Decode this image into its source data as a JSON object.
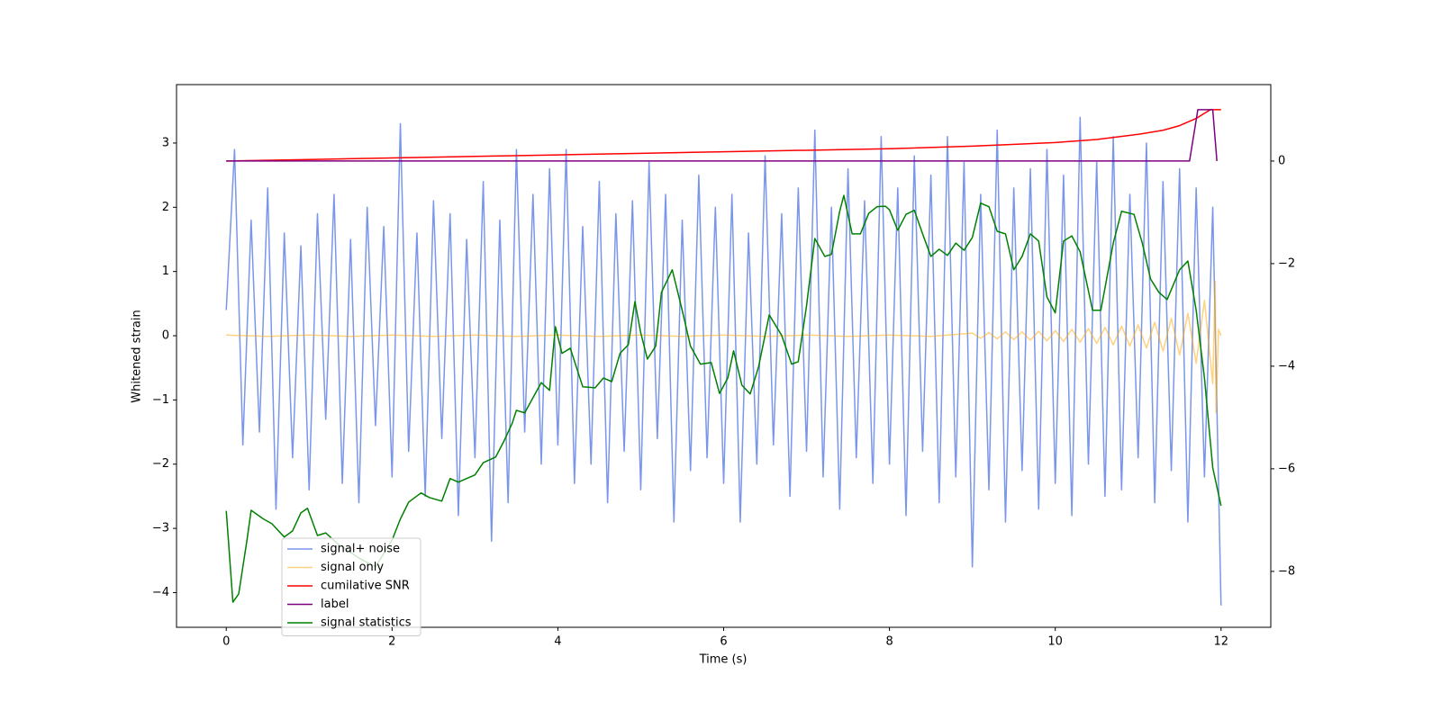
{
  "chart_data": {
    "type": "line",
    "xlabel": "Time (s)",
    "ylabel": "Whitened strain",
    "xlim": [
      -0.6,
      12.6
    ],
    "xticks": [
      0,
      2,
      4,
      6,
      8,
      10,
      12
    ],
    "ylim": [
      -4.54,
      3.91
    ],
    "yticks": [
      {
        "value": -4,
        "label": "−4"
      },
      {
        "value": -3,
        "label": "−3"
      },
      {
        "value": -2,
        "label": "−2"
      },
      {
        "value": -1,
        "label": "−1"
      },
      0,
      1,
      2,
      3
    ],
    "y2lim": [
      -9.09,
      1.49
    ],
    "y2ticks": [
      {
        "value": -8,
        "label": "−8"
      },
      {
        "value": -6,
        "label": "−6"
      },
      {
        "value": -4,
        "label": "−4"
      },
      {
        "value": -2,
        "label": "−2"
      },
      0
    ],
    "legend": "lower left",
    "series": [
      {
        "name": "signal+ noise",
        "color": "#4169e1",
        "alpha": 0.7,
        "x": [
          0,
          0.1,
          0.2,
          0.3,
          0.4,
          0.5,
          0.6,
          0.7,
          0.8,
          0.9,
          1,
          1.1,
          1.2,
          1.3,
          1.4,
          1.5,
          1.6,
          1.7,
          1.8,
          1.9,
          2,
          2.1,
          2.2,
          2.3,
          2.4,
          2.5,
          2.6,
          2.7,
          2.8,
          2.9,
          3,
          3.1,
          3.2,
          3.3,
          3.4,
          3.5,
          3.6,
          3.7,
          3.8,
          3.9,
          4,
          4.1,
          4.2,
          4.3,
          4.4,
          4.5,
          4.6,
          4.7,
          4.8,
          4.9,
          5,
          5.1,
          5.2,
          5.3,
          5.4,
          5.5,
          5.6,
          5.7,
          5.8,
          5.9,
          6,
          6.1,
          6.2,
          6.3,
          6.4,
          6.5,
          6.6,
          6.7,
          6.8,
          6.9,
          7,
          7.1,
          7.2,
          7.3,
          7.4,
          7.5,
          7.6,
          7.7,
          7.8,
          7.9,
          8,
          8.1,
          8.2,
          8.3,
          8.4,
          8.5,
          8.6,
          8.7,
          8.8,
          8.9,
          9,
          9.1,
          9.2,
          9.3,
          9.4,
          9.5,
          9.6,
          9.7,
          9.8,
          9.9,
          10,
          10.1,
          10.2,
          10.3,
          10.4,
          10.5,
          10.6,
          10.7,
          10.8,
          10.9,
          11,
          11.1,
          11.2,
          11.3,
          11.4,
          11.5,
          11.6,
          11.7,
          11.8,
          11.9,
          12
        ],
        "values": [
          0.4,
          2.9,
          -1.7,
          1.8,
          -1.5,
          2.3,
          -2.7,
          1.6,
          -1.9,
          1.4,
          -2.4,
          1.9,
          -1.3,
          2.2,
          -2.3,
          1.5,
          -2.6,
          2.0,
          -1.4,
          1.7,
          -2.2,
          3.3,
          -1.8,
          1.6,
          -2.5,
          2.1,
          -1.6,
          1.9,
          -2.8,
          1.5,
          -1.9,
          2.4,
          -3.2,
          1.8,
          -2.6,
          2.9,
          -1.5,
          2.2,
          -2.0,
          2.6,
          -1.7,
          2.9,
          -2.3,
          1.7,
          -2.0,
          2.4,
          -2.6,
          1.9,
          -1.8,
          2.1,
          -2.4,
          2.7,
          -1.6,
          2.2,
          -2.9,
          1.8,
          -2.1,
          2.5,
          -1.9,
          2.0,
          -2.3,
          2.2,
          -2.9,
          1.6,
          -2.0,
          2.8,
          -1.7,
          1.9,
          -2.5,
          2.3,
          -1.8,
          3.2,
          -2.2,
          2.0,
          -2.7,
          2.6,
          -1.9,
          2.1,
          -2.3,
          3.1,
          -2.0,
          2.3,
          -2.8,
          2.8,
          -1.8,
          2.5,
          -2.6,
          3.1,
          -2.2,
          2.7,
          -3.6,
          2.2,
          -2.4,
          3.2,
          -2.9,
          2.3,
          -2.1,
          2.6,
          -2.7,
          2.9,
          -2.3,
          2.5,
          -2.8,
          3.4,
          -2.0,
          2.7,
          -2.5,
          3.1,
          -2.4,
          2.2,
          -1.9,
          3.0,
          -2.6,
          2.4,
          -2.1,
          2.6,
          -2.9,
          2.3,
          -2.2,
          2.0,
          -4.2
        ]
      },
      {
        "name": "signal only",
        "color": "#ffa500",
        "alpha": 0.5,
        "x": [
          0,
          0.5,
          1,
          1.5,
          2,
          2.5,
          3,
          3.5,
          4,
          4.5,
          5,
          5.5,
          6,
          6.5,
          7,
          7.5,
          8,
          8.5,
          9,
          9.1,
          9.2,
          9.3,
          9.4,
          9.5,
          9.6,
          9.7,
          9.8,
          9.9,
          10,
          10.1,
          10.2,
          10.3,
          10.4,
          10.5,
          10.6,
          10.7,
          10.8,
          10.9,
          11,
          11.1,
          11.2,
          11.3,
          11.4,
          11.5,
          11.6,
          11.7,
          11.8,
          11.9,
          11.93,
          11.94,
          11.97,
          12
        ],
        "values": [
          0.01,
          -0.01,
          0.01,
          -0.01,
          0.01,
          -0.01,
          0.01,
          -0.01,
          0.01,
          -0.01,
          0.01,
          -0.01,
          0.01,
          -0.01,
          0.01,
          -0.01,
          0.01,
          -0.01,
          0.04,
          -0.04,
          0.05,
          -0.05,
          0.06,
          -0.06,
          0.06,
          -0.07,
          0.07,
          -0.08,
          0.08,
          -0.09,
          0.1,
          -0.1,
          0.11,
          -0.12,
          0.13,
          -0.14,
          0.15,
          -0.16,
          0.17,
          -0.19,
          0.21,
          -0.24,
          0.27,
          -0.3,
          0.35,
          -0.43,
          0.55,
          -0.75,
          0.85,
          -1.2,
          0.1,
          0
        ]
      },
      {
        "name": "cumilative SNR",
        "color": "#ff0000",
        "axis": "y2",
        "x": [
          0,
          1,
          2,
          3,
          4,
          5,
          6,
          7,
          8,
          9,
          10,
          10.5,
          11,
          11.3,
          11.5,
          11.7,
          11.8,
          11.87,
          12
        ],
        "values": [
          0,
          0.03,
          0.06,
          0.09,
          0.12,
          0.15,
          0.18,
          0.21,
          0.24,
          0.29,
          0.36,
          0.42,
          0.52,
          0.6,
          0.69,
          0.83,
          0.93,
          1.0,
          1.0
        ]
      },
      {
        "name": "label",
        "color": "#800080",
        "axis": "y2",
        "x": [
          0,
          11.62,
          11.72,
          11.9,
          11.95
        ],
        "values": [
          0,
          0,
          1,
          1,
          0
        ]
      },
      {
        "name": "signal statistics",
        "color": "#008000",
        "axis": "y2",
        "x": [
          0,
          0.08,
          0.15,
          0.25,
          0.3,
          0.45,
          0.55,
          0.7,
          0.8,
          0.9,
          0.98,
          1.1,
          1.2,
          1.35,
          1.6,
          1.8,
          2.0,
          2.1,
          2.2,
          2.35,
          2.45,
          2.6,
          2.7,
          2.8,
          3.0,
          3.1,
          3.25,
          3.35,
          3.45,
          3.5,
          3.6,
          3.8,
          3.9,
          3.97,
          4.05,
          4.15,
          4.3,
          4.45,
          4.55,
          4.65,
          4.75,
          4.85,
          4.93,
          5.0,
          5.08,
          5.18,
          5.25,
          5.38,
          5.5,
          5.6,
          5.72,
          5.85,
          5.95,
          6.05,
          6.12,
          6.22,
          6.32,
          6.42,
          6.55,
          6.7,
          6.82,
          6.9,
          7.0,
          7.1,
          7.22,
          7.3,
          7.4,
          7.45,
          7.55,
          7.65,
          7.75,
          7.85,
          7.95,
          8.0,
          8.1,
          8.2,
          8.3,
          8.4,
          8.5,
          8.6,
          8.7,
          8.8,
          8.9,
          9.0,
          9.1,
          9.2,
          9.3,
          9.4,
          9.5,
          9.6,
          9.7,
          9.8,
          9.9,
          10.0,
          10.1,
          10.2,
          10.3,
          10.45,
          10.55,
          10.7,
          10.8,
          10.95,
          11.05,
          11.15,
          11.25,
          11.35,
          11.5,
          11.6,
          11.7,
          11.8,
          11.9,
          12.0
        ],
        "values": [
          -6.82,
          -8.6,
          -8.44,
          -7.39,
          -6.81,
          -6.98,
          -7.07,
          -7.33,
          -7.21,
          -6.86,
          -6.77,
          -7.3,
          -7.25,
          -7.47,
          -7.74,
          -7.91,
          -7.39,
          -6.98,
          -6.65,
          -6.47,
          -6.56,
          -6.63,
          -6.19,
          -6.26,
          -6.12,
          -5.88,
          -5.77,
          -5.46,
          -5.11,
          -4.86,
          -4.91,
          -4.32,
          -4.47,
          -3.23,
          -3.75,
          -3.65,
          -4.4,
          -4.42,
          -4.23,
          -4.3,
          -3.75,
          -3.58,
          -2.74,
          -3.35,
          -3.86,
          -3.61,
          -2.56,
          -2.12,
          -2.91,
          -3.61,
          -3.96,
          -3.93,
          -4.53,
          -4.23,
          -3.7,
          -4.37,
          -4.54,
          -4.02,
          -3.0,
          -3.4,
          -3.96,
          -3.91,
          -2.82,
          -1.51,
          -1.86,
          -1.82,
          -0.98,
          -0.67,
          -1.42,
          -1.42,
          -1.02,
          -0.89,
          -0.88,
          -0.95,
          -1.35,
          -1.04,
          -0.96,
          -1.42,
          -1.86,
          -1.72,
          -1.84,
          -1.6,
          -1.74,
          -1.49,
          -0.82,
          -0.89,
          -1.37,
          -1.42,
          -2.12,
          -1.86,
          -1.42,
          -1.56,
          -2.65,
          -2.96,
          -1.56,
          -1.46,
          -1.77,
          -2.91,
          -2.91,
          -1.6,
          -0.98,
          -1.04,
          -1.6,
          -2.3,
          -2.56,
          -2.7,
          -2.12,
          -1.95,
          -2.91,
          -4.23,
          -5.98,
          -6.72
        ]
      }
    ]
  }
}
